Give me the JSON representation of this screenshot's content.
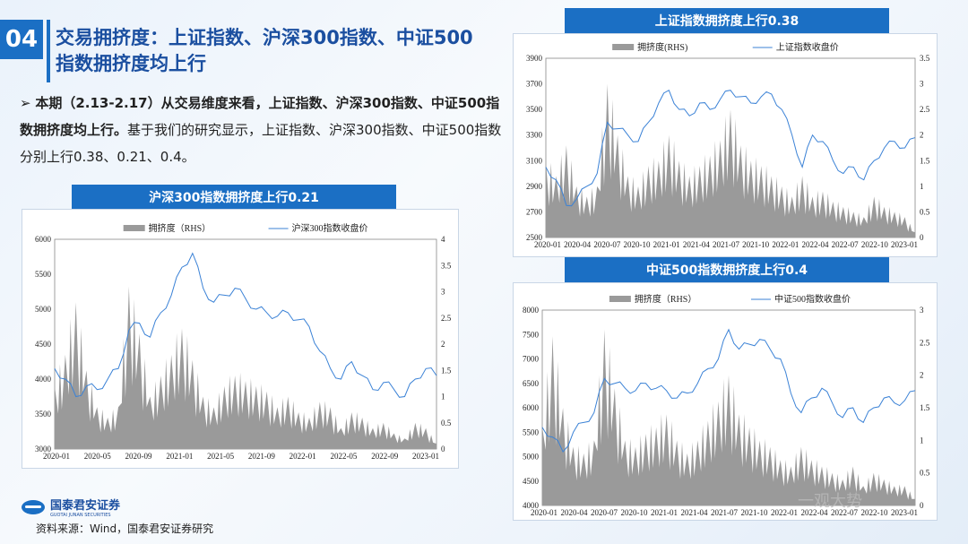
{
  "header": {
    "number": "04",
    "title": "交易拥挤度：上证指数、沪深300指数、中证500指数拥挤度均上行"
  },
  "bullet": {
    "marker": "➢",
    "bold": "本期（2.13-2.17）从交易维度来看，上证指数、沪深300指数、中证500指数拥挤度均上行。",
    "text": "基于我们的研究显示，上证指数、沪深300指数、中证500指数分别上行0.38、0.21、0.4。"
  },
  "footer": {
    "company": "国泰君安证券",
    "company_en": "GUOTAI JUNAN SECURITIES",
    "source": "资料来源：Wind，国泰君安证券研究",
    "watermark": "一观大势"
  },
  "colors": {
    "accent": "#1b6fc4",
    "area": "#9a9a9a",
    "line": "#3b82d6"
  },
  "chart_data": [
    {
      "type": "area",
      "title": "沪深300指数拥挤度上行0.21",
      "legend": [
        "拥挤度（RHS）",
        "沪深300指数收盘价"
      ],
      "x_ticks": [
        "2020-01",
        "2020-05",
        "2020-09",
        "2021-01",
        "2021-05",
        "2021-09",
        "2022-01",
        "2022-05",
        "2022-09",
        "2023-01"
      ],
      "ylim": [
        3000,
        6000
      ],
      "y_ticks": [
        3000,
        3500,
        4000,
        4500,
        5000,
        5500,
        6000
      ],
      "y2lim": [
        0,
        4
      ],
      "y2_ticks": [
        0,
        0.5,
        1,
        1.5,
        2,
        2.5,
        3,
        3.5,
        4
      ],
      "series": [
        {
          "name": "沪深300指数收盘价",
          "axis": "left",
          "values": [
            4150,
            4000,
            3750,
            3900,
            3850,
            4000,
            4150,
            4700,
            4800,
            4600,
            4950,
            5200,
            5600,
            5800,
            5300,
            5100,
            5200,
            5300,
            5150,
            5000,
            4950,
            4900,
            4950,
            4850,
            4750,
            4400,
            4150,
            4000,
            4250,
            4050,
            3850,
            3950,
            3850,
            3750,
            4000,
            4150,
            4050
          ]
        },
        {
          "name": "拥挤度（RHS）",
          "axis": "right",
          "values": [
            1.2,
            1.8,
            2.8,
            1.5,
            0.8,
            0.6,
            0.8,
            3.1,
            2.2,
            1.0,
            1.4,
            1.8,
            2.3,
            1.7,
            1.0,
            0.8,
            1.2,
            1.4,
            1.3,
            1.2,
            1.1,
            0.8,
            1.0,
            0.7,
            0.6,
            0.9,
            0.8,
            0.4,
            0.7,
            0.6,
            0.4,
            0.5,
            0.3,
            0.2,
            0.5,
            0.4,
            0.1
          ]
        }
      ]
    },
    {
      "type": "area",
      "title": "上证指数拥挤度上行0.38",
      "legend": [
        "拥挤度(RHS)",
        "上证指数收盘价"
      ],
      "x_ticks": [
        "2020-01",
        "2020-04",
        "2020-07",
        "2020-10",
        "2021-01",
        "2021-04",
        "2021-07",
        "2021-10",
        "2022-01",
        "2022-04",
        "2022-07",
        "2022-10",
        "2023-01"
      ],
      "ylim": [
        2500,
        3900
      ],
      "y_ticks": [
        2500,
        2700,
        2900,
        3100,
        3300,
        3500,
        3700,
        3900
      ],
      "y2lim": [
        0,
        3.5
      ],
      "y2_ticks": [
        0,
        0.5,
        1,
        1.5,
        2,
        2.5,
        3,
        3.5
      ],
      "series": [
        {
          "name": "上证指数收盘价",
          "axis": "left",
          "values": [
            3050,
            2950,
            2750,
            2800,
            2900,
            3000,
            3400,
            3350,
            3300,
            3250,
            3400,
            3550,
            3650,
            3500,
            3450,
            3550,
            3500,
            3580,
            3650,
            3600,
            3550,
            3600,
            3620,
            3500,
            3300,
            3050,
            3300,
            3250,
            3100,
            3000,
            3050,
            2950,
            3100,
            3200,
            3250,
            3200,
            3280
          ]
        },
        {
          "name": "拥挤度(RHS)",
          "axis": "right",
          "values": [
            1.5,
            1.2,
            1.8,
            1.0,
            0.8,
            1.0,
            3.0,
            2.0,
            1.2,
            1.0,
            1.4,
            1.5,
            2.0,
            1.5,
            1.2,
            1.4,
            1.6,
            1.9,
            2.5,
            1.8,
            1.5,
            1.4,
            1.2,
            1.0,
            0.8,
            1.2,
            0.8,
            0.9,
            0.7,
            0.6,
            0.5,
            0.4,
            0.8,
            0.6,
            0.5,
            0.4,
            0.1
          ]
        }
      ]
    },
    {
      "type": "area",
      "title": "中证500指数拥挤度上行0.4",
      "legend": [
        "拥挤度（RHS）",
        "中证500指数收盘价"
      ],
      "x_ticks": [
        "2020-01",
        "2020-04",
        "2020-07",
        "2020-10",
        "2021-01",
        "2021-04",
        "2021-07",
        "2021-10",
        "2022-01",
        "2022-04",
        "2022-07",
        "2022-10",
        "2023-01"
      ],
      "ylim": [
        4000,
        8000
      ],
      "y_ticks": [
        4000,
        4500,
        5000,
        5500,
        6000,
        6500,
        7000,
        7500,
        8000
      ],
      "y2lim": [
        0,
        3
      ],
      "y2_ticks": [
        0,
        0.5,
        1,
        1.5,
        2,
        2.5,
        3
      ],
      "series": [
        {
          "name": "中证500指数收盘价",
          "axis": "left",
          "values": [
            5600,
            5400,
            5100,
            5500,
            5700,
            5900,
            6600,
            6500,
            6400,
            6350,
            6500,
            6400,
            6350,
            6200,
            6300,
            6500,
            6800,
            7000,
            7600,
            7200,
            7300,
            7400,
            7200,
            7000,
            6300,
            5900,
            6200,
            6400,
            6100,
            5800,
            6000,
            5700,
            6000,
            6200,
            6100,
            6150,
            6350
          ]
        },
        {
          "name": "拥挤度（RHS）",
          "axis": "right",
          "values": [
            1.2,
            2.6,
            1.5,
            0.9,
            0.8,
            1.0,
            2.7,
            1.8,
            1.0,
            0.9,
            1.1,
            1.2,
            1.4,
            1.0,
            0.8,
            1.0,
            1.3,
            1.6,
            2.0,
            1.4,
            1.2,
            1.0,
            0.9,
            0.7,
            0.6,
            0.9,
            0.7,
            0.6,
            0.5,
            0.4,
            0.6,
            0.3,
            0.5,
            0.4,
            0.3,
            0.3,
            0.1
          ]
        }
      ]
    }
  ]
}
